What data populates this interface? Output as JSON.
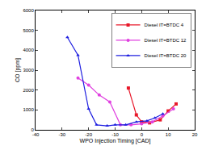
{
  "chart_data": {
    "type": "line",
    "x_label": "WPO Injection Timing [CAD]",
    "y_label": "CO [ppm]",
    "xlim": [
      -40,
      20
    ],
    "xticks": [
      -40,
      -30,
      -20,
      -10,
      0,
      10,
      20
    ],
    "ylim": [
      0,
      6000
    ],
    "yticks": [
      0,
      1000,
      2000,
      3000,
      4000,
      5000,
      6000
    ],
    "grid": false,
    "legend": "top-right",
    "series": [
      {
        "name": "Diesel IT=BTDC 4",
        "color": "#e8182a",
        "marker": "square",
        "line_style": "solid",
        "x": [
          -5,
          -2,
          0,
          3,
          7,
          10,
          13
        ],
        "values": [
          2100,
          750,
          400,
          350,
          500,
          950,
          1300
        ]
      },
      {
        "name": "Diesel IT=BTDC 12",
        "color": "#e040e0",
        "marker": "circle",
        "line_style": "solid",
        "x": [
          -24,
          -20,
          -16,
          -12,
          -8,
          -4,
          0,
          4,
          8,
          12
        ],
        "values": [
          2600,
          2250,
          1750,
          1400,
          250,
          250,
          300,
          400,
          700,
          1050
        ]
      },
      {
        "name": "Diesel IT=BTDC 20",
        "color": "#1e1ee0",
        "marker": "triangle-up",
        "line_style": "solid",
        "x": [
          -28,
          -24,
          -20,
          -17,
          -13,
          -10,
          -6,
          -2,
          2,
          5,
          8
        ],
        "values": [
          4650,
          3750,
          1050,
          250,
          200,
          250,
          250,
          400,
          450,
          600,
          800
        ]
      }
    ]
  }
}
